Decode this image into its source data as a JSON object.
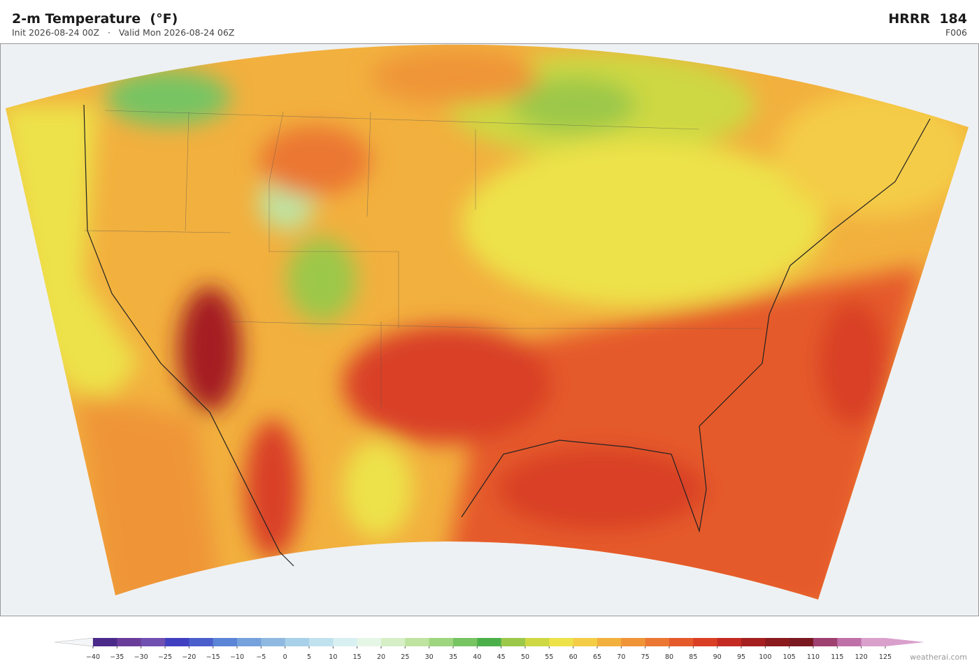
{
  "header": {
    "title": "2-m Temperature  (°F)",
    "subtitle": "Init 2026-08-24 00Z   ·   Valid Mon 2026-08-24 06Z",
    "model": "HRRR  184",
    "forecast_hour": "F006"
  },
  "colorbar": {
    "ticks": [
      {
        "value": -40,
        "label": "−40"
      },
      {
        "value": -35,
        "label": "−35"
      },
      {
        "value": -30,
        "label": "−30"
      },
      {
        "value": -25,
        "label": "−25"
      },
      {
        "value": -20,
        "label": "−20"
      },
      {
        "value": -15,
        "label": "−15"
      },
      {
        "value": -10,
        "label": "−10"
      },
      {
        "value": -5,
        "label": "−5"
      },
      0,
      5,
      10,
      15,
      20,
      25,
      30,
      35,
      40,
      45,
      50,
      55,
      60,
      65,
      70,
      75,
      80,
      85,
      90,
      95,
      100,
      105,
      110,
      115,
      120,
      125
    ],
    "colors": [
      "#4b2a8a",
      "#6a3d9a",
      "#7050b0",
      "#4040c0",
      "#4a5fcc",
      "#5b85d6",
      "#75a1dc",
      "#8fb9e0",
      "#a8d0e8",
      "#c0e2ee",
      "#d8f0f2",
      "#e6f6e6",
      "#d6efc6",
      "#bfe3a0",
      "#9ed57f",
      "#77c463",
      "#4cb04a",
      "#9cc84a",
      "#cdd843",
      "#ede24a",
      "#f4cc46",
      "#f2b03e",
      "#ef9538",
      "#eb7733",
      "#e55a2b",
      "#d93f25",
      "#c42a22",
      "#a51f20",
      "#8a1a1e",
      "#7a1820",
      "#9e4070",
      "#c070a8",
      "#d9a0cc"
    ],
    "under_color": "#f4f6f8",
    "over_color": "#d9a0cc"
  },
  "watermark": "weatherai.com"
}
